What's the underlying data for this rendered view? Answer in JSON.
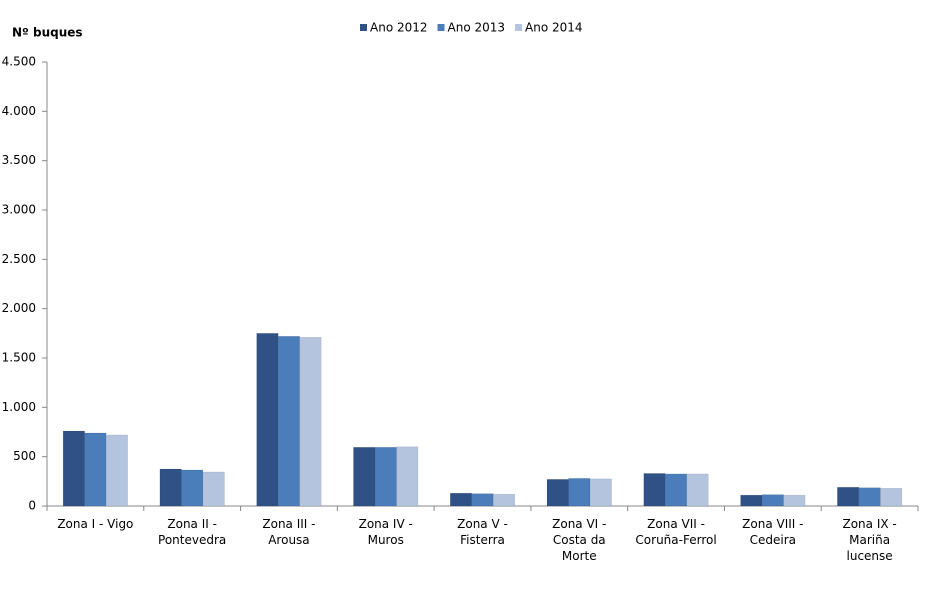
{
  "chart_data": {
    "type": "bar",
    "y_label": "Nº buques",
    "categories": [
      "Zona I - Vigo",
      "Zona II - Pontevedra",
      "Zona III - Arousa",
      "Zona IV - Muros",
      "Zona V - Fisterra",
      "Zona VI - Costa da Morte",
      "Zona VII - Coruña-Ferrol",
      "Zona VIII - Cedeira",
      "Zona IX - Mariña lucense"
    ],
    "series": [
      {
        "name": "Ano 2012",
        "color": "#2f5185",
        "values": [
          760,
          375,
          1750,
          595,
          130,
          270,
          330,
          110,
          190
        ]
      },
      {
        "name": "Ano 2013",
        "color": "#4a7dba",
        "values": [
          740,
          365,
          1720,
          595,
          125,
          280,
          325,
          115,
          185
        ]
      },
      {
        "name": "Ano 2014",
        "color": "#b4c4df",
        "values": [
          720,
          345,
          1710,
          600,
          120,
          275,
          325,
          110,
          180
        ]
      }
    ],
    "ylim": [
      0,
      4500
    ],
    "yticks": [
      0,
      500,
      {
        "value": 1000,
        "label": "1.000"
      },
      {
        "value": 1500,
        "label": "1.500"
      },
      {
        "value": 2000,
        "label": "2.000"
      },
      {
        "value": 2500,
        "label": "2.500"
      },
      {
        "value": 3000,
        "label": "3.000"
      },
      {
        "value": 3500,
        "label": "3.500"
      },
      {
        "value": 4000,
        "label": "4.000"
      },
      {
        "value": 4500,
        "label": "4.500"
      }
    ],
    "grid": false,
    "legend": "top"
  }
}
